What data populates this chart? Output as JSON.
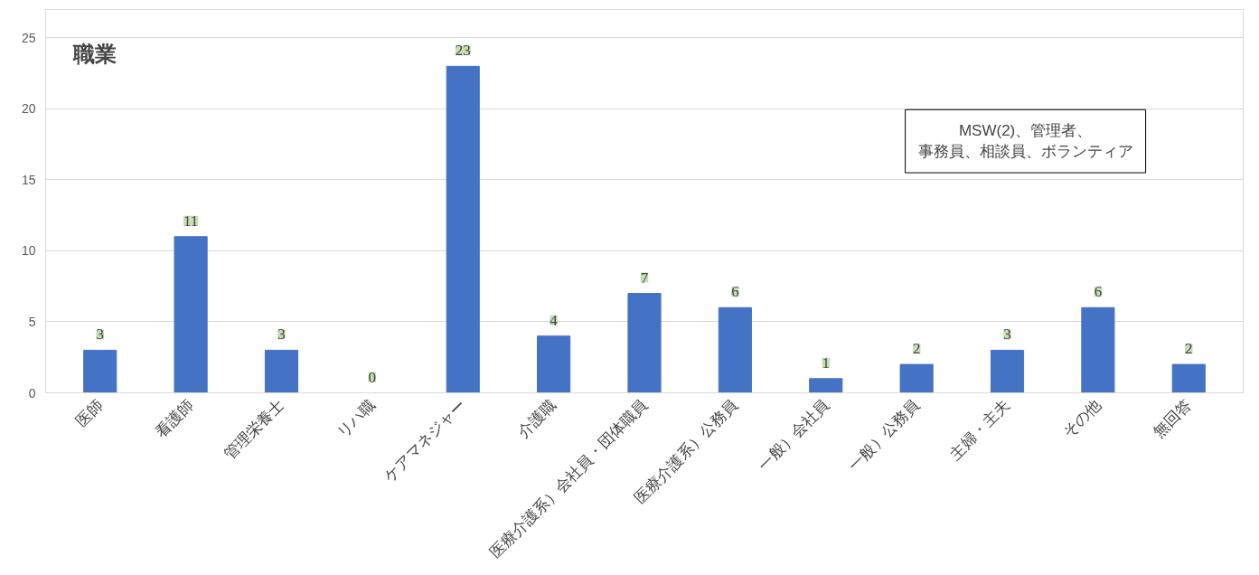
{
  "chart_data": {
    "type": "bar",
    "title": "職業",
    "categories": [
      "医師",
      "看護師",
      "管理栄養士",
      "リハ職",
      "ケアマネジャー",
      "介護職",
      "医療介護系）会社員・団体職員",
      "医療介護系）公務員",
      "一般）会社員",
      "一般）公務員",
      "主婦・主夫",
      "その他",
      "無回答"
    ],
    "values": [
      3,
      11,
      3,
      0,
      23,
      4,
      7,
      6,
      1,
      2,
      3,
      6,
      2
    ],
    "color": "#4472c4",
    "ylim": [
      0,
      27
    ],
    "yticks": [
      0,
      5,
      10,
      15,
      20,
      25
    ],
    "grid": "y",
    "data_labels": true,
    "annotations": [
      "MSW(2)、管理者、事務員、相談員、ボランティア"
    ]
  }
}
